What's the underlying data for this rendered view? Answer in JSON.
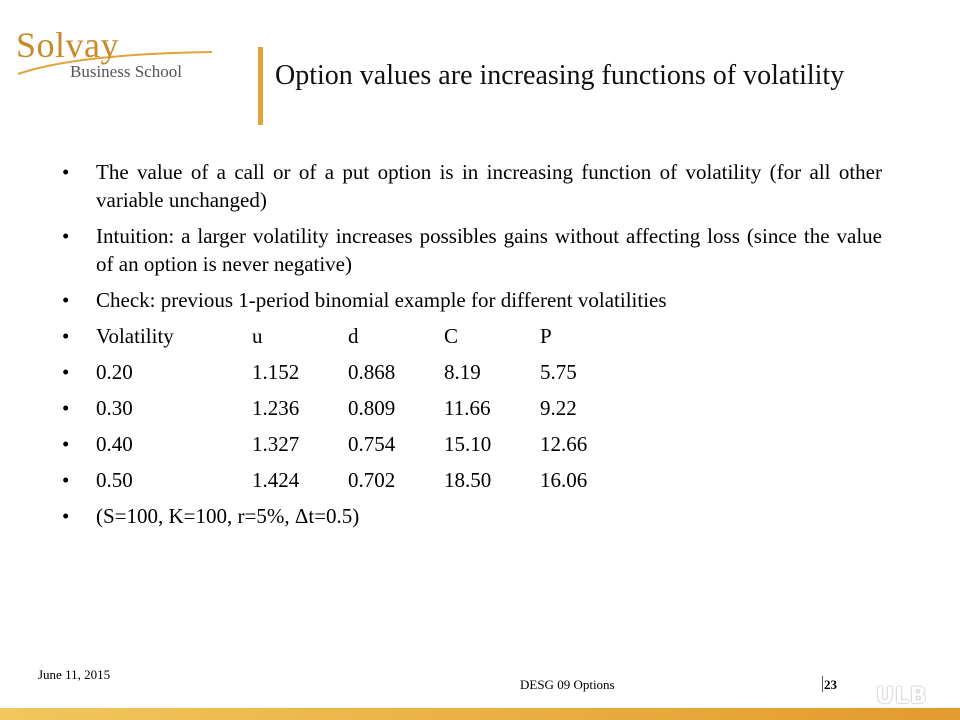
{
  "header": {
    "logo_main": "Solvay",
    "logo_sub": "Business School",
    "title": "Option values are increasing functions of volatility"
  },
  "bullets": [
    "The value of a call or of a put option is in increasing function of volatility (for all other variable unchanged)",
    "Intuition: a larger volatility increases possibles gains without affecting loss (since the value of an option is never negative)",
    "Check: previous 1-period binomial example for different  volatilities"
  ],
  "table": {
    "header": [
      "Volatility",
      "u",
      "d",
      "C",
      "P"
    ],
    "rows": [
      [
        "0.20",
        "1.152",
        "0.868",
        "8.19",
        "5.75"
      ],
      [
        "0.30",
        "1.236",
        "0.809",
        "11.66",
        "9.22"
      ],
      [
        "0.40",
        "1.327",
        "0.754",
        "15.10",
        "12.66"
      ],
      [
        "0.50",
        "1.424",
        "0.702",
        "18.50",
        "16.06"
      ]
    ]
  },
  "note": "(S=100, K=100, r=5%, Δt=0.5)",
  "footer": {
    "date": "June 11, 2015",
    "center": "DESG 09 Options",
    "page": "23",
    "brand": "ULB"
  },
  "colors": {
    "accent": "#e3a339",
    "logo": "#c98a2c"
  }
}
